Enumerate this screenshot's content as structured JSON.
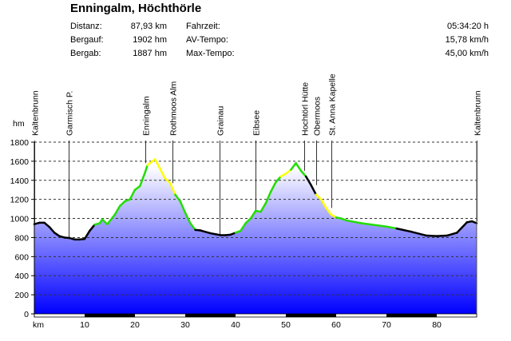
{
  "header": {
    "title": "Enningalm, Höchthörle",
    "stats": [
      {
        "label": "Distanz:",
        "value": "87,93 km",
        "label2": "Fahrzeit:",
        "value2": "05:34:20 h"
      },
      {
        "label": "Bergauf:",
        "value": "1902 hm",
        "label2": "AV-Tempo:",
        "value2": "15,78 km/h"
      },
      {
        "label": "Bergab:",
        "value": "1887 hm",
        "label2": "Max-Tempo:",
        "value2": "45,00 km/h"
      }
    ]
  },
  "chart_data": {
    "type": "area",
    "ylabel": "hm",
    "xlabel": "km",
    "xlim": [
      0,
      87.93
    ],
    "ylim": [
      0,
      1800
    ],
    "yticks": [
      0,
      200,
      400,
      600,
      800,
      1000,
      1200,
      1400,
      1600,
      1800
    ],
    "xticks": [
      10,
      20,
      30,
      40,
      50,
      60,
      70,
      80
    ],
    "colors": {
      "k": "#000000",
      "g": "#22dd00",
      "y": "#ffff00",
      "fill_top": "#ffffff",
      "fill_bottom": "#0000ff"
    },
    "waypoints": [
      {
        "name": "Kaltenbrunn",
        "km": 0
      },
      {
        "name": "Garmisch P.",
        "km": 6.9
      },
      {
        "name": "Enningalm",
        "km": 22
      },
      {
        "name": "Rothmoos Alm",
        "km": 27.5
      },
      {
        "name": "Grainau",
        "km": 36.9
      },
      {
        "name": "Eibsee",
        "km": 43.9
      },
      {
        "name": "Hochtörl Hütte",
        "km": 53.6
      },
      {
        "name": "Obermoos",
        "km": 56
      },
      {
        "name": "St. Anna Kapelle",
        "km": 59
      },
      {
        "name": "Kaltenbrunn",
        "km": 87.93
      }
    ],
    "profile": [
      [
        0,
        940,
        "k"
      ],
      [
        1,
        955,
        "k"
      ],
      [
        2,
        955,
        "k"
      ],
      [
        3,
        910,
        "k"
      ],
      [
        4,
        850,
        "k"
      ],
      [
        5,
        815,
        "k"
      ],
      [
        6,
        800,
        "k"
      ],
      [
        7,
        795,
        "k"
      ],
      [
        8,
        780,
        "k"
      ],
      [
        9,
        780,
        "k"
      ],
      [
        10,
        785,
        "k"
      ],
      [
        11,
        870,
        "k"
      ],
      [
        12,
        935,
        "k"
      ],
      [
        13,
        950,
        "g"
      ],
      [
        13.5,
        990,
        "g"
      ],
      [
        14.5,
        940,
        "g"
      ],
      [
        16,
        1040,
        "g"
      ],
      [
        17,
        1130,
        "g"
      ],
      [
        18,
        1180,
        "g"
      ],
      [
        19,
        1200,
        "g"
      ],
      [
        20,
        1300,
        "g"
      ],
      [
        21,
        1340,
        "g"
      ],
      [
        22,
        1480,
        "g"
      ],
      [
        22.5,
        1560,
        "g"
      ],
      [
        23,
        1580,
        "y"
      ],
      [
        24,
        1620,
        "y"
      ],
      [
        25,
        1520,
        "y"
      ],
      [
        26,
        1420,
        "y"
      ],
      [
        27,
        1370,
        "y"
      ],
      [
        28,
        1250,
        "y"
      ],
      [
        29,
        1180,
        "g"
      ],
      [
        30,
        1060,
        "g"
      ],
      [
        31,
        950,
        "g"
      ],
      [
        32,
        880,
        "g"
      ],
      [
        33,
        875,
        "k"
      ],
      [
        34,
        860,
        "k"
      ],
      [
        35,
        845,
        "k"
      ],
      [
        36,
        835,
        "k"
      ],
      [
        37,
        825,
        "k"
      ],
      [
        38,
        825,
        "k"
      ],
      [
        39,
        830,
        "k"
      ],
      [
        40,
        850,
        "k"
      ],
      [
        41,
        870,
        "g"
      ],
      [
        42,
        950,
        "g"
      ],
      [
        43,
        1000,
        "g"
      ],
      [
        44,
        1080,
        "g"
      ],
      [
        45,
        1070,
        "g"
      ],
      [
        46,
        1160,
        "g"
      ],
      [
        47,
        1280,
        "g"
      ],
      [
        48,
        1380,
        "g"
      ],
      [
        49,
        1440,
        "g"
      ],
      [
        50,
        1470,
        "y"
      ],
      [
        51,
        1510,
        "y"
      ],
      [
        52,
        1580,
        "g"
      ],
      [
        53,
        1500,
        "g"
      ],
      [
        54,
        1440,
        "g"
      ],
      [
        55,
        1350,
        "k"
      ],
      [
        56,
        1250,
        "k"
      ],
      [
        57,
        1200,
        "y"
      ],
      [
        58,
        1110,
        "y"
      ],
      [
        59,
        1040,
        "y"
      ],
      [
        60,
        1010,
        "y"
      ],
      [
        61,
        1000,
        "g"
      ],
      [
        62,
        980,
        "g"
      ],
      [
        65,
        950,
        "g"
      ],
      [
        70,
        915,
        "g"
      ],
      [
        72,
        895,
        "g"
      ],
      [
        75,
        860,
        "k"
      ],
      [
        78,
        820,
        "k"
      ],
      [
        80,
        815,
        "k"
      ],
      [
        82,
        820,
        "k"
      ],
      [
        84,
        850,
        "k"
      ],
      [
        86,
        960,
        "k"
      ],
      [
        87,
        970,
        "k"
      ],
      [
        87.93,
        950,
        "k"
      ]
    ]
  }
}
